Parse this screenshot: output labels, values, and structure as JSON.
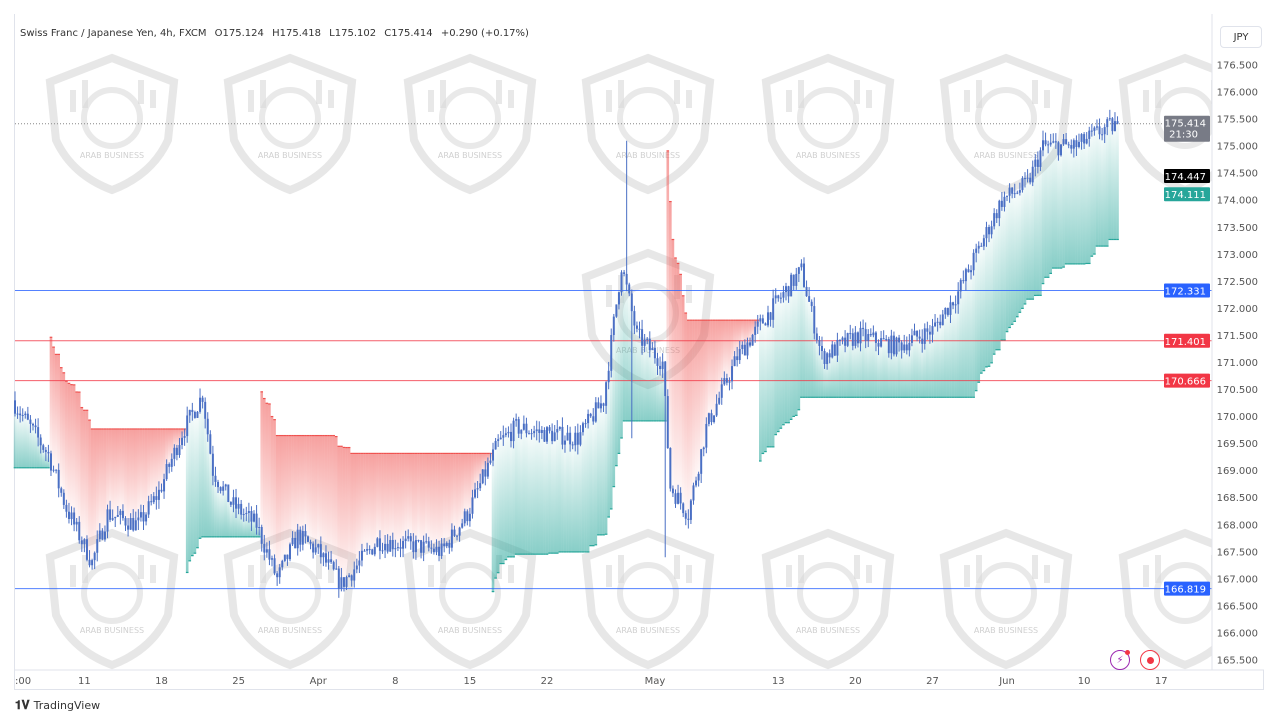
{
  "legend": {
    "symbol": "Swiss Franc / Japanese Yen, 4h, FXCM",
    "open": "O175.124",
    "high": "H175.418",
    "low": "L175.102",
    "close": "C175.414",
    "change": "+0.290 (+0.17%)"
  },
  "currency_button": "JPY",
  "footer": {
    "brand": "TradingView"
  },
  "watermark_text": "ARAB BUSINESS",
  "colors": {
    "up": "#26a69a",
    "down": "#ef5350",
    "candle": "#4a6fc4",
    "blue_line": "#2962ff",
    "red_line": "#f23645"
  },
  "chart_data": {
    "type": "candlestick",
    "title": "Swiss Franc / Japanese Yen, 4h, FXCM",
    "ylim": [
      165.5,
      176.5
    ],
    "y_ticks": [
      "176.500",
      "176.000",
      "175.500",
      "175.000",
      "174.500",
      "174.000",
      "173.500",
      "173.000",
      "172.500",
      "172.000",
      "171.500",
      "171.000",
      "170.500",
      "170.000",
      "169.500",
      "169.000",
      "168.500",
      "168.000",
      "167.500",
      "167.000",
      "166.500",
      "166.000",
      "165.500"
    ],
    "x_ticks": [
      {
        "label": ":00",
        "bar": 0
      },
      {
        "label": "11",
        "bar": 27
      },
      {
        "label": "18",
        "bar": 57
      },
      {
        "label": "25",
        "bar": 87
      },
      {
        "label": "Apr",
        "bar": 118
      },
      {
        "label": "8",
        "bar": 148
      },
      {
        "label": "15",
        "bar": 177
      },
      {
        "label": "22",
        "bar": 207
      },
      {
        "label": "May",
        "bar": 249
      },
      {
        "label": "13",
        "bar": 297
      },
      {
        "label": "20",
        "bar": 327
      },
      {
        "label": "27",
        "bar": 357
      },
      {
        "label": "Jun",
        "bar": 386
      },
      {
        "label": "10",
        "bar": 416
      },
      {
        "label": "17",
        "bar": 446
      }
    ],
    "price_path": [
      [
        0,
        170.3
      ],
      [
        14,
        169.3
      ],
      [
        21,
        168.3
      ],
      [
        31,
        167.3
      ],
      [
        37,
        168.2
      ],
      [
        49,
        168.0
      ],
      [
        57,
        168.6
      ],
      [
        66,
        169.7
      ],
      [
        74,
        170.4
      ],
      [
        78,
        169.0
      ],
      [
        85,
        168.4
      ],
      [
        95,
        168.0
      ],
      [
        103,
        167.0
      ],
      [
        111,
        167.8
      ],
      [
        119,
        167.5
      ],
      [
        128,
        166.9
      ],
      [
        142,
        167.7
      ],
      [
        158,
        167.6
      ],
      [
        167,
        167.5
      ],
      [
        177,
        168.2
      ],
      [
        189,
        169.5
      ],
      [
        196,
        169.8
      ],
      [
        206,
        169.7
      ],
      [
        220,
        169.6
      ],
      [
        230,
        170.3
      ],
      [
        237,
        172.8
      ],
      [
        243,
        171.5
      ],
      [
        253,
        171.0
      ],
      [
        256,
        168.7
      ],
      [
        263,
        168.2
      ],
      [
        270,
        169.8
      ],
      [
        282,
        171.1
      ],
      [
        294,
        171.9
      ],
      [
        307,
        172.7
      ],
      [
        315,
        171.1
      ],
      [
        329,
        171.5
      ],
      [
        344,
        171.3
      ],
      [
        358,
        171.6
      ],
      [
        368,
        172.3
      ],
      [
        377,
        173.2
      ],
      [
        385,
        174.0
      ],
      [
        395,
        174.3
      ],
      [
        401,
        175.0
      ],
      [
        414,
        175.0
      ],
      [
        424,
        175.3
      ],
      [
        430,
        175.414
      ]
    ],
    "last_price": "175.414",
    "countdown": "21:30",
    "price_labels": [
      {
        "value": "174.447",
        "kind": "black"
      },
      {
        "value": "174.111",
        "kind": "green"
      }
    ],
    "horizontal_lines": [
      {
        "value": 172.331,
        "label": "172.331",
        "color": "blue"
      },
      {
        "value": 171.401,
        "label": "171.401",
        "color": "red"
      },
      {
        "value": 170.666,
        "label": "170.666",
        "color": "red"
      },
      {
        "value": 166.819,
        "label": "166.819",
        "color": "blue"
      }
    ]
  }
}
